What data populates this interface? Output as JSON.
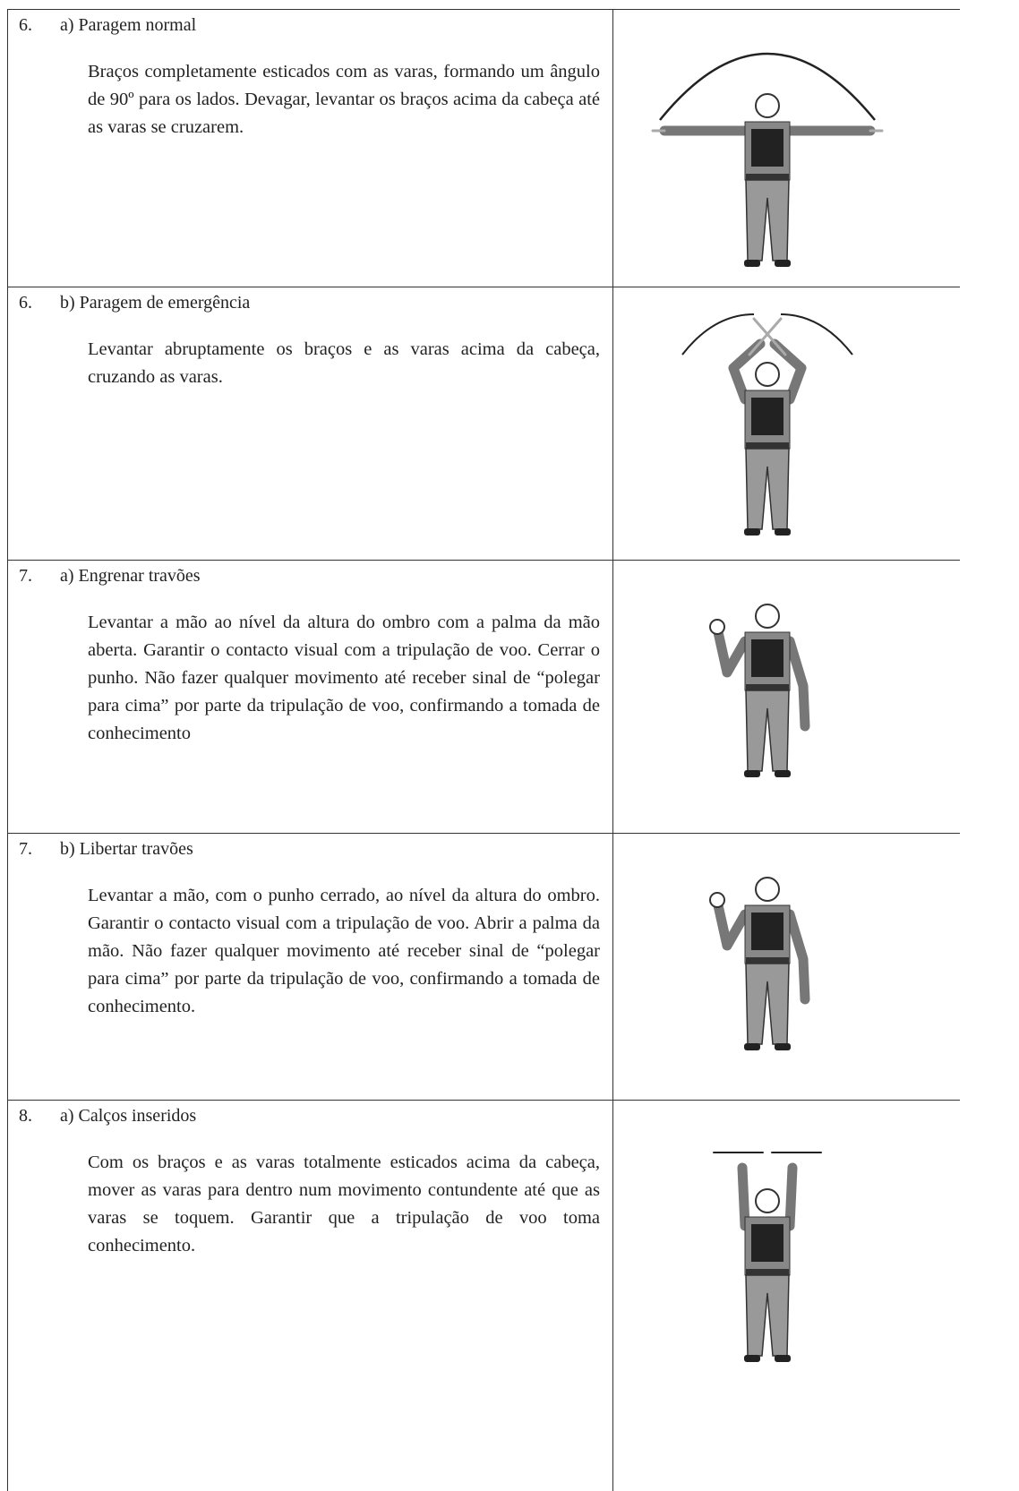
{
  "rows": [
    {
      "number": "6.",
      "title": "a) Paragem normal",
      "description": "Braços completamente esticados com as varas, formando um ângulo de 90º para os lados. Devagar, levantar os braços acima da cabeça até as varas se cruzarem."
    },
    {
      "number": "6.",
      "title": "b) Paragem de emergência",
      "description": "Levantar abruptamente os braços e as varas acima da cabeça, cruzando as varas."
    },
    {
      "number": "7.",
      "title": "a) Engrenar travões",
      "description": "Levantar a mão ao nível da altura do ombro com a palma da mão aberta. Garantir o contacto visual com a tripulação de voo. Cerrar o punho. Não fazer qualquer movimento até receber sinal de “polegar para cima” por parte da tripulação de voo, confirmando a tomada de conhecimento"
    },
    {
      "number": "7.",
      "title": "b) Libertar travões",
      "description": "Levantar a mão, com o punho cerrado, ao nível da altura do ombro. Garantir o contacto visual com a tripulação de voo. Abrir a palma da mão. Não fazer qualquer movimento até receber sinal de “polegar para cima” por parte da tripulação de voo, confirmando a tomada de conhecimento."
    },
    {
      "number": "8.",
      "title": "a) Calços inseridos",
      "description": "Com os braços e as varas totalmente esticados acima da cabeça, mover as varas para dentro num movimento contundente até que as varas se toquem. Garantir que a tripulação de voo toma conhecimento."
    }
  ]
}
